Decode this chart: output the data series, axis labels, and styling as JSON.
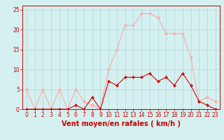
{
  "hours": [
    0,
    1,
    2,
    3,
    4,
    5,
    6,
    7,
    8,
    9,
    10,
    11,
    12,
    13,
    14,
    15,
    16,
    17,
    18,
    19,
    20,
    21,
    22,
    23
  ],
  "wind_avg": [
    0,
    0,
    0,
    0,
    0,
    0,
    1,
    0,
    3,
    0,
    7,
    6,
    8,
    8,
    8,
    9,
    7,
    8,
    6,
    9,
    6,
    2,
    1,
    0
  ],
  "wind_gust": [
    5,
    0,
    5,
    0,
    5,
    0,
    5,
    2,
    1,
    0,
    10,
    15,
    21,
    21,
    24,
    24,
    23,
    19,
    19,
    19,
    13,
    2,
    3,
    2
  ],
  "line_color_avg": "#dd0000",
  "line_color_gust": "#ffaaaa",
  "marker_color_avg": "#dd0000",
  "marker_color_gust": "#ffaaaa",
  "bg_color": "#d4f0f0",
  "grid_color": "#b0d8d8",
  "xlabel": "Vent moyen/en rafales ( km/h )",
  "ylim": [
    0,
    26
  ],
  "xlim": [
    -0.5,
    23.5
  ],
  "yticks": [
    0,
    5,
    10,
    15,
    20,
    25
  ],
  "xticks": [
    0,
    1,
    2,
    3,
    4,
    5,
    6,
    7,
    8,
    9,
    10,
    11,
    12,
    13,
    14,
    15,
    16,
    17,
    18,
    19,
    20,
    21,
    22,
    23
  ],
  "tick_color": "#cc0000",
  "label_color": "#cc0000",
  "tick_fontsize": 5.5,
  "xlabel_fontsize": 7.0,
  "linewidth": 0.8,
  "markersize": 2.0
}
